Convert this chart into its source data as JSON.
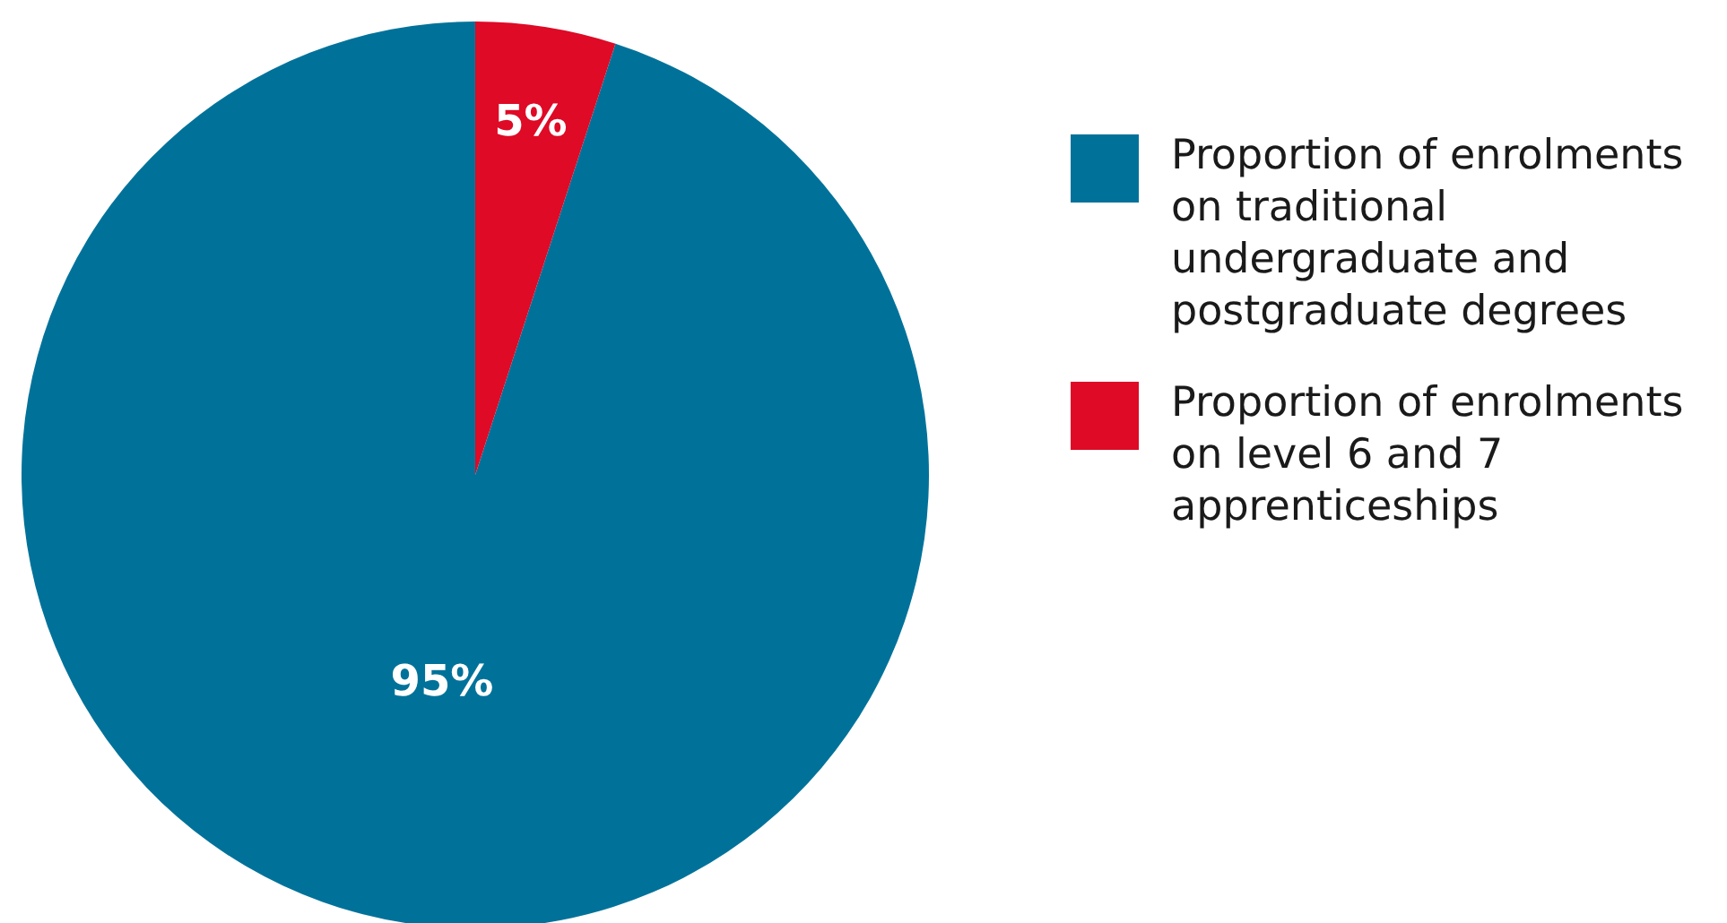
{
  "chart_data": {
    "type": "pie",
    "categories": [
      "Proportion of enrolments on traditional undergraduate and postgraduate degrees",
      "Proportion of enrolments on level 6 and 7 apprenticeships"
    ],
    "values": [
      95,
      5
    ],
    "colors": [
      "#00729a",
      "#de0a26"
    ],
    "value_labels": [
      "95%",
      "5%"
    ],
    "legend": "right"
  }
}
